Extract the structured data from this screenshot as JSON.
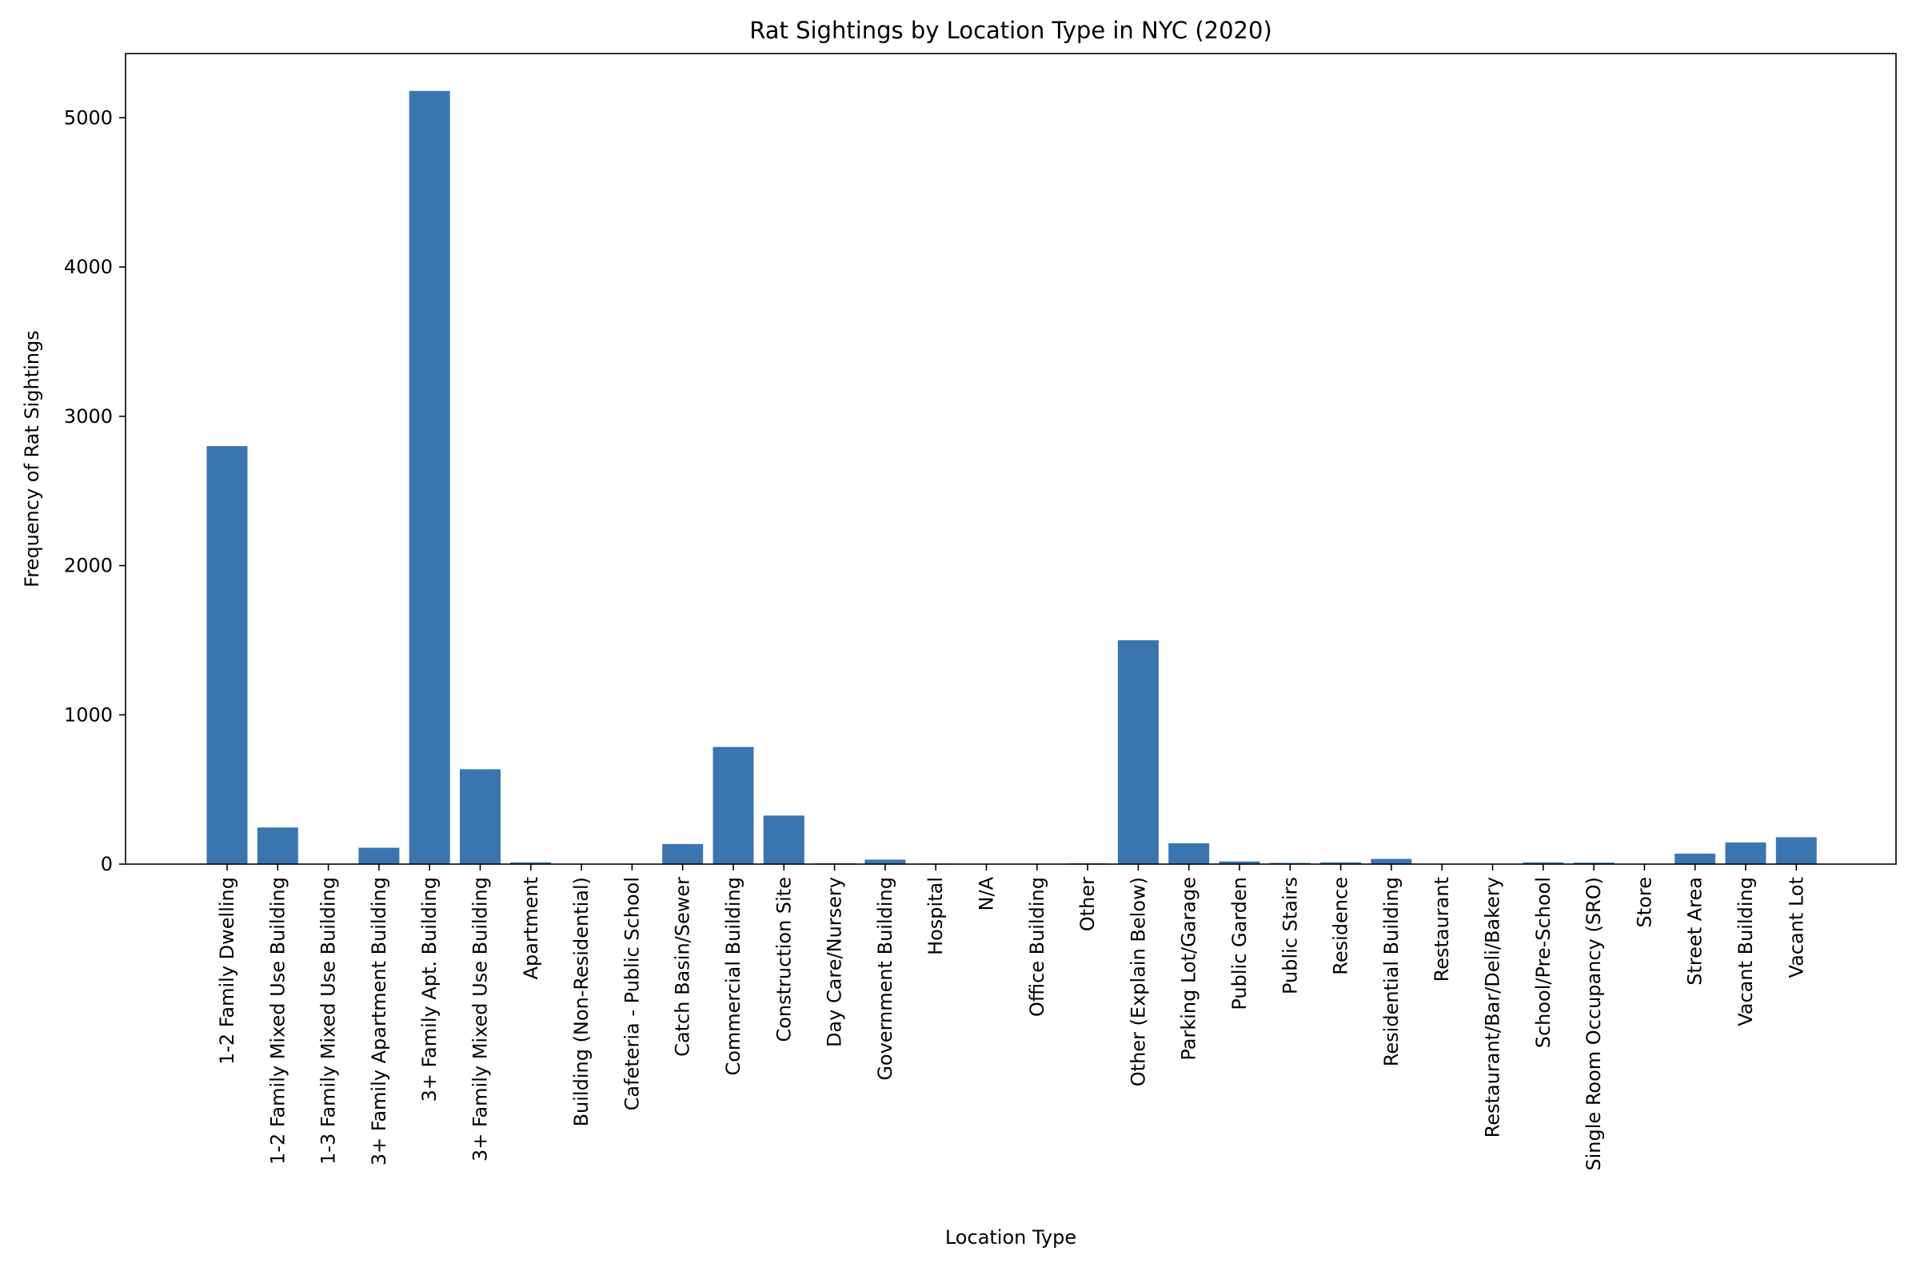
{
  "chart_data": {
    "type": "bar",
    "title": "Rat Sightings by Location Type in NYC (2020)",
    "xlabel": "Location Type",
    "ylabel": "Frequency of Rat Sightings",
    "ylim": [
      0,
      5430
    ],
    "yticks": [
      0,
      1000,
      2000,
      3000,
      4000,
      5000
    ],
    "grid": false,
    "bar_color": "#3a75b0",
    "categories": [
      "1-2 Family Dwelling",
      "1-2 Family Mixed Use Building",
      "1-3 Family Mixed Use Building",
      "3+ Family Apartment Building",
      "3+ Family Apt. Building",
      "3+ Family Mixed Use Building",
      "Apartment",
      "Building (Non-Residential)",
      "Cafeteria - Public School",
      "Catch Basin/Sewer",
      "Commercial Building",
      "Construction Site",
      "Day Care/Nursery",
      "Government Building",
      "Hospital",
      "N/A",
      "Office Building",
      "Other",
      "Other (Explain Below)",
      "Parking Lot/Garage",
      "Public Garden",
      "Public Stairs",
      "Residence",
      "Residential Building",
      "Restaurant",
      "Restaurant/Bar/Deli/Bakery",
      "School/Pre-School",
      "Single Room Occupancy (SRO)",
      "Store",
      "Street Area",
      "Vacant Building",
      "Vacant Lot"
    ],
    "values": [
      2800,
      245,
      1,
      110,
      5180,
      635,
      12,
      2,
      2,
      135,
      785,
      325,
      5,
      30,
      4,
      1,
      2,
      5,
      1500,
      140,
      18,
      8,
      12,
      35,
      1,
      2,
      12,
      10,
      1,
      70,
      145,
      180
    ]
  }
}
